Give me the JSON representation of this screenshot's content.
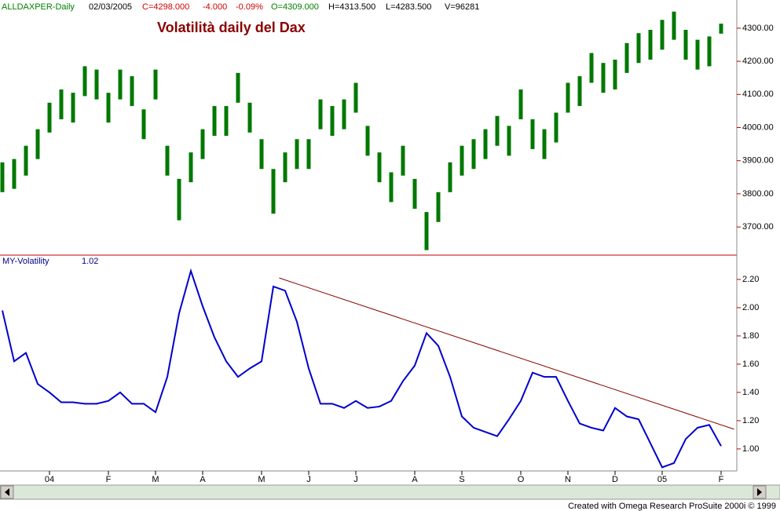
{
  "header": {
    "symbol": "ALLDAXPER-Daily",
    "date": "02/03/2005",
    "close": "C=4298.000",
    "change": "-4.000",
    "change_pct": "-0.09%",
    "open": "O=4309.000",
    "high": "H=4313.500",
    "low": "L=4283.500",
    "volume": "V=96281"
  },
  "footer": "Created with Omega Research ProSuite 2000i © 1999",
  "chart_data": [
    {
      "type": "hilo",
      "title": "Volatilità daily del Dax",
      "color": "#007800",
      "high": [
        3895,
        3905,
        3945,
        3995,
        4075,
        4115,
        4105,
        4185,
        4175,
        4105,
        4175,
        4155,
        4055,
        4175,
        3945,
        3845,
        3925,
        3995,
        4065,
        4065,
        4165,
        4075,
        3965,
        3875,
        3925,
        3965,
        3965,
        4085,
        4065,
        4085,
        4135,
        4005,
        3925,
        3865,
        3945,
        3845,
        3745,
        3805,
        3895,
        3945,
        3965,
        3995,
        4035,
        4005,
        4115,
        4025,
        3995,
        4045,
        4135,
        4155,
        4225,
        4195,
        4205,
        4255,
        4285,
        4295,
        4325,
        4350,
        4295,
        4265,
        4275,
        4313.5
      ],
      "low": [
        3805,
        3815,
        3855,
        3905,
        3985,
        4025,
        4015,
        4095,
        4085,
        4015,
        4085,
        4065,
        3965,
        4085,
        3855,
        3720,
        3835,
        3905,
        3975,
        3975,
        4075,
        3985,
        3875,
        3740,
        3835,
        3875,
        3875,
        3995,
        3975,
        3995,
        4045,
        3915,
        3835,
        3775,
        3855,
        3755,
        3630,
        3715,
        3805,
        3855,
        3875,
        3905,
        3945,
        3915,
        4025,
        3935,
        3905,
        3955,
        4045,
        4065,
        4135,
        4105,
        4115,
        4165,
        4195,
        4205,
        4235,
        4265,
        4205,
        4175,
        4185,
        4283.5
      ],
      "ylim": [
        3615,
        4385
      ],
      "yticks": [
        {
          "value": 3700,
          "label": "3700.00"
        },
        {
          "value": 3800,
          "label": "3800.00"
        },
        {
          "value": 3900,
          "label": "3900.00"
        },
        {
          "value": 4000,
          "label": "4000.00"
        },
        {
          "value": 4100,
          "label": "4100.00"
        },
        {
          "value": 4200,
          "label": "4200.00"
        },
        {
          "value": 4300,
          "label": "4300.00"
        }
      ]
    },
    {
      "type": "line",
      "name": "MY-Volatility",
      "color": "#0000cc",
      "categories": [
        null,
        null,
        null,
        null,
        "04",
        null,
        null,
        null,
        null,
        "F",
        null,
        null,
        null,
        "M",
        null,
        null,
        null,
        "A",
        null,
        null,
        null,
        null,
        "M",
        null,
        null,
        null,
        "J",
        null,
        null,
        null,
        "J",
        null,
        null,
        null,
        null,
        "A",
        null,
        null,
        null,
        "S",
        null,
        null,
        null,
        null,
        "O",
        null,
        null,
        null,
        "N",
        null,
        null,
        null,
        "D",
        null,
        null,
        null,
        "05",
        null,
        null,
        null,
        null,
        "F"
      ],
      "values": [
        1.98,
        1.62,
        1.68,
        1.46,
        1.4,
        1.33,
        1.33,
        1.32,
        1.32,
        1.34,
        1.4,
        1.32,
        1.32,
        1.26,
        1.51,
        1.96,
        2.26,
        2.01,
        1.79,
        1.62,
        1.51,
        1.57,
        1.62,
        2.15,
        2.12,
        1.9,
        1.57,
        1.32,
        1.32,
        1.29,
        1.34,
        1.29,
        1.3,
        1.34,
        1.48,
        1.59,
        1.82,
        1.73,
        1.51,
        1.23,
        1.15,
        1.12,
        1.09,
        1.21,
        1.34,
        1.54,
        1.51,
        1.51,
        1.34,
        1.18,
        1.15,
        1.13,
        1.29,
        1.23,
        1.21,
        1.04,
        0.87,
        0.9,
        1.07,
        1.15,
        1.17,
        1.02
      ],
      "trendline": {
        "x": [
          23.5,
          62.1
        ],
        "values": [
          2.21,
          1.14
        ],
        "color": "#8b0000"
      },
      "ylim": [
        0.844,
        2.372
      ],
      "yticks": [
        {
          "value": 1,
          "label": "1.00"
        },
        {
          "value": 1.2,
          "label": "1.20"
        },
        {
          "value": 1.4,
          "label": "1.40"
        },
        {
          "value": 1.6,
          "label": "1.60"
        },
        {
          "value": 1.8,
          "label": "1.80"
        },
        {
          "value": 2,
          "label": "2.00"
        },
        {
          "value": 2.2,
          "label": "2.20"
        }
      ]
    }
  ]
}
